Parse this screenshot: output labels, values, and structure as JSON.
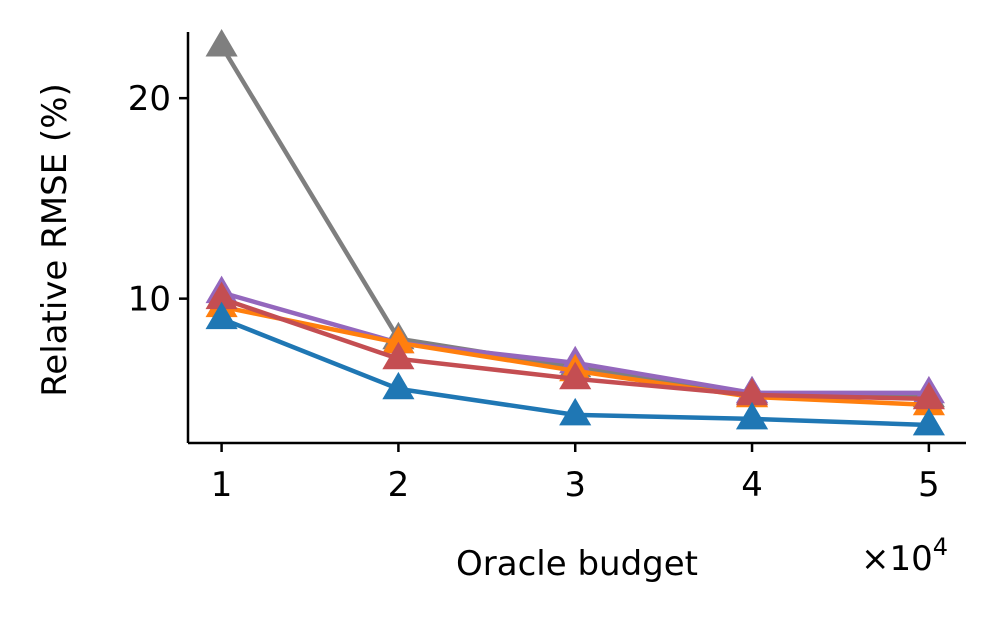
{
  "chart_data": {
    "type": "line",
    "title": "",
    "xlabel": "Oracle budget",
    "ylabel": "Relative RMSE (%)",
    "x_scale_label": "×10",
    "x_scale_exponent": "4",
    "x": [
      1,
      2,
      3,
      4,
      5
    ],
    "x_tick_labels": [
      "1",
      "2",
      "3",
      "4",
      "5"
    ],
    "xlim": [
      0.81,
      5.21
    ],
    "y_ticks": [
      10,
      20
    ],
    "y_tick_labels": [
      "10",
      "20"
    ],
    "ylim": [
      2.8,
      23.3
    ],
    "grid": false,
    "legend": "none",
    "marker": "triangle-up",
    "series": [
      {
        "color": "#7f7f7f",
        "values": [
          22.6,
          8.0,
          6.6,
          5.3,
          5.1
        ]
      },
      {
        "color": "#9467bd",
        "values": [
          10.3,
          7.8,
          6.8,
          5.3,
          5.3
        ]
      },
      {
        "color": "#ff7f0e",
        "values": [
          9.6,
          7.8,
          6.4,
          5.1,
          4.7
        ]
      },
      {
        "color": "#c44e52",
        "values": [
          10.0,
          7.0,
          6.0,
          5.2,
          5.0
        ]
      },
      {
        "color": "#1f77b4",
        "values": [
          9.0,
          5.5,
          4.2,
          4.0,
          3.7
        ]
      }
    ]
  }
}
